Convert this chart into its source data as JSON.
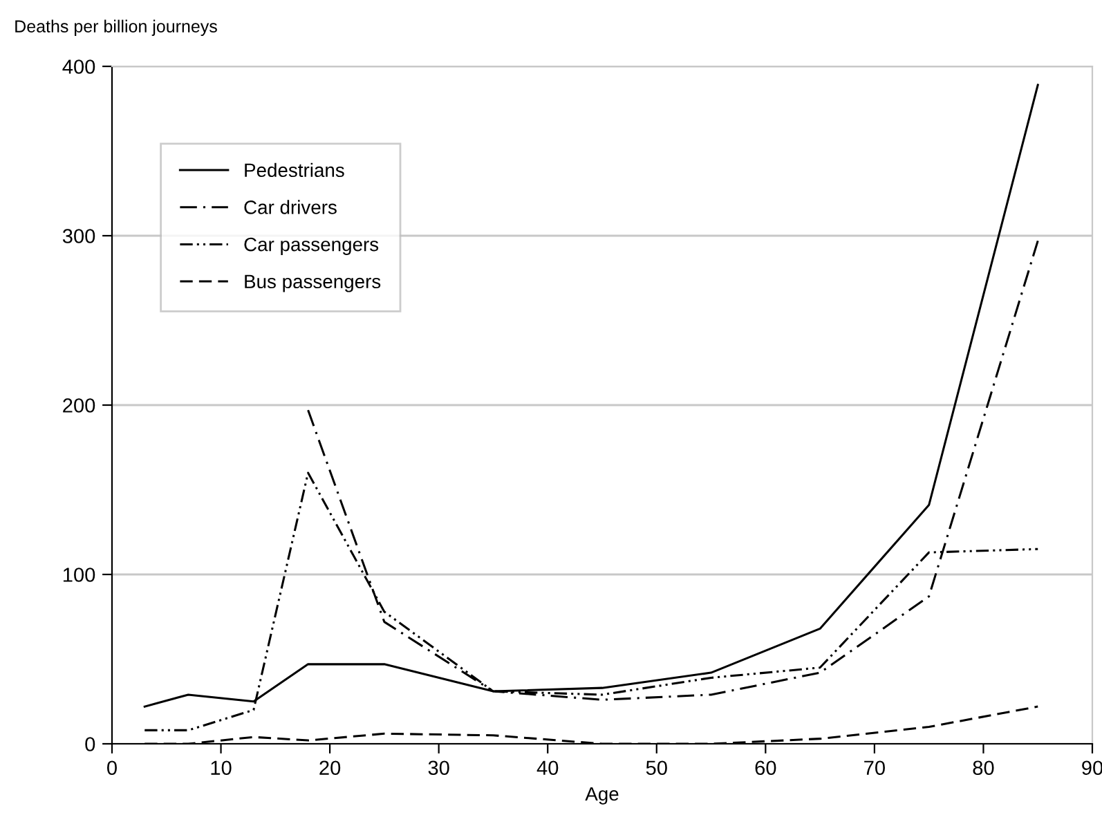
{
  "chart_data": {
    "type": "line",
    "ylabel": "Deaths per billion journeys",
    "xlabel": "Age",
    "x": [
      3,
      7,
      13,
      18,
      25,
      35,
      45,
      55,
      65,
      75,
      85
    ],
    "series": [
      {
        "name": "Pedestrians",
        "color": "#000000",
        "line_style": "solid",
        "values": [
          22,
          29,
          25,
          47,
          47,
          31,
          33,
          42,
          68,
          141,
          389
        ]
      },
      {
        "name": "Car drivers",
        "color": "#000000",
        "line_style": "dashdot",
        "values": [
          null,
          null,
          null,
          197,
          72,
          31,
          26,
          29,
          42,
          87,
          297
        ]
      },
      {
        "name": "Car passengers",
        "color": "#000000",
        "line_style": "dashdotdot",
        "values": [
          8,
          8,
          20,
          160,
          78,
          31,
          29,
          39,
          45,
          113,
          115
        ]
      },
      {
        "name": "Bus passengers",
        "color": "#000000",
        "line_style": "dashed",
        "values": [
          0,
          0,
          4,
          2,
          6,
          5,
          0,
          0,
          3,
          10,
          22
        ]
      }
    ],
    "xlim": [
      0,
      90
    ],
    "xticks": [
      0,
      10,
      20,
      30,
      40,
      50,
      60,
      70,
      80,
      90
    ],
    "ylim": [
      0,
      400
    ],
    "yticks": [
      0,
      100,
      200,
      300,
      400
    ],
    "grid": "y",
    "legend": "top left"
  }
}
